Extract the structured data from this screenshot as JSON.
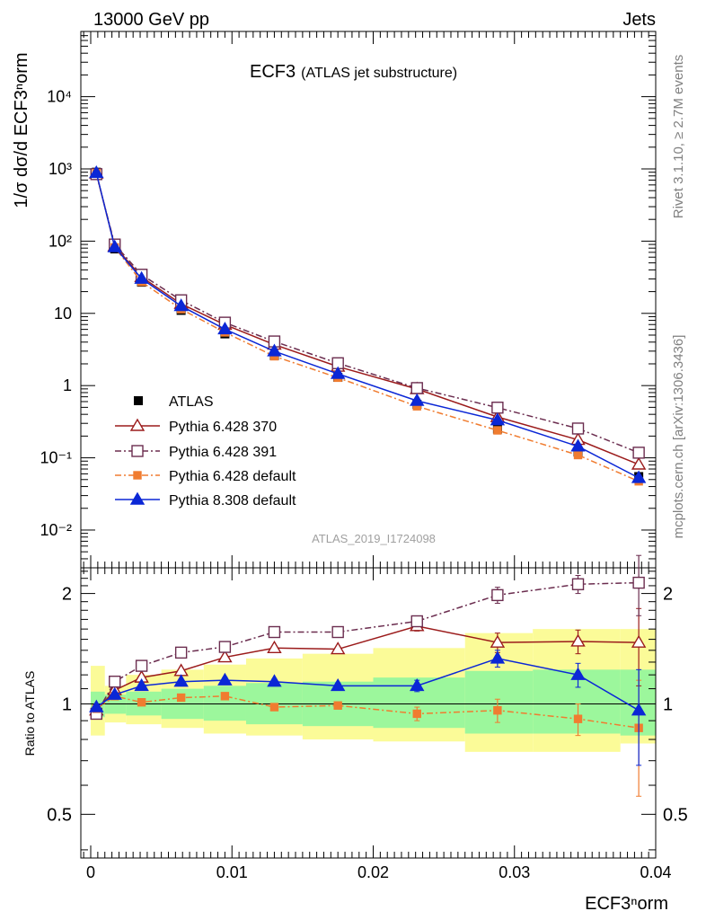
{
  "header": {
    "left": "13000 GeV pp",
    "right": "Jets"
  },
  "title": {
    "main": "ECF3",
    "sub": "(ATLAS jet substructure)"
  },
  "analysis_id": "ATLAS_2019_I1724098",
  "side_labels": {
    "top": "Rivet 3.1.10, ≥ 2.7M events",
    "bottom": "mcplots.cern.ch [arXiv:1306.3436]"
  },
  "axes": {
    "xlabel": "ECF3ⁿorm",
    "ylabel_top": "1/σ dσ/d ECF3ⁿorm",
    "ylabel_bottom": "Ratio to ATLAS",
    "main_yticks": [
      "10⁻²",
      "10⁻¹",
      "1",
      "10",
      "10²",
      "10³",
      "10⁴"
    ],
    "ratio_yticks": [
      "0.5",
      "1",
      "2"
    ],
    "xticks": [
      "0",
      "0.01",
      "0.02",
      "0.03",
      "0.04"
    ]
  },
  "legend": [
    {
      "label": "ATLAS"
    },
    {
      "label": "Pythia 6.428 370"
    },
    {
      "label": "Pythia 6.428 391"
    },
    {
      "label": "Pythia 6.428 default"
    },
    {
      "label": "Pythia 8.308 default"
    }
  ],
  "chart_data": {
    "type": "line",
    "xlabel": "ECF3ⁿorm",
    "ylabel": "1/σ dσ/d ECF3ⁿorm",
    "xlim": [
      -0.0007,
      0.04
    ],
    "ylim": [
      0.003,
      80000
    ],
    "yscale": "log",
    "ratio_ylim": [
      0.38,
      2.35
    ],
    "ratio_yscale": "log",
    "x": [
      0.0004,
      0.0017,
      0.0036,
      0.0064,
      0.0095,
      0.013,
      0.0175,
      0.0231,
      0.0288,
      0.0345,
      0.0388
    ],
    "data": {
      "name": "ATLAS",
      "values": [
        900,
        78,
        27,
        11,
        5.2,
        2.6,
        1.3,
        0.55,
        0.25,
        0.12,
        0.055
      ],
      "band_inner": [
        [
          0.92,
          1.08
        ],
        [
          0.94,
          1.06
        ],
        [
          0.93,
          1.08
        ],
        [
          0.91,
          1.1
        ],
        [
          0.9,
          1.12
        ],
        [
          0.88,
          1.14
        ],
        [
          0.87,
          1.15
        ],
        [
          0.86,
          1.18
        ],
        [
          0.83,
          1.23
        ],
        [
          0.83,
          1.24
        ],
        [
          0.82,
          1.24
        ]
      ],
      "band_outer": [
        [
          0.82,
          1.27
        ],
        [
          0.89,
          1.12
        ],
        [
          0.88,
          1.2
        ],
        [
          0.86,
          1.24
        ],
        [
          0.83,
          1.28
        ],
        [
          0.82,
          1.33
        ],
        [
          0.8,
          1.37
        ],
        [
          0.79,
          1.42
        ],
        [
          0.74,
          1.56
        ],
        [
          0.74,
          1.6
        ],
        [
          0.78,
          1.6
        ]
      ]
    },
    "series": [
      {
        "name": "Pythia 6.428 370",
        "color": "#9b1b1b",
        "marker": "open-triangle",
        "dash": "",
        "ratio": [
          0.96,
          1.09,
          1.18,
          1.23,
          1.34,
          1.42,
          1.41,
          1.63,
          1.47,
          1.48,
          1.47
        ],
        "ratio_err": [
          0.01,
          0.01,
          0.01,
          0.01,
          0.02,
          0.02,
          0.02,
          0.05,
          0.09,
          0.11,
          0.35
        ]
      },
      {
        "name": "Pythia 6.428 391",
        "color": "#6b2d4f",
        "marker": "open-square",
        "dash": "7,3,2,3",
        "ratio": [
          0.94,
          1.15,
          1.27,
          1.38,
          1.43,
          1.57,
          1.57,
          1.68,
          1.98,
          2.12,
          2.14
        ],
        "ratio_err": [
          0.01,
          0.01,
          0.01,
          0.02,
          0.02,
          0.03,
          0.03,
          0.05,
          0.1,
          0.12,
          0.4
        ]
      },
      {
        "name": "Pythia 6.428 default",
        "color": "#f07c30",
        "marker": "filled-square",
        "dash": "7,3,2,3",
        "ratio": [
          0.97,
          1.05,
          1.01,
          1.04,
          1.05,
          0.98,
          0.99,
          0.94,
          0.96,
          0.91,
          0.86
        ],
        "ratio_err": [
          0.01,
          0.01,
          0.01,
          0.01,
          0.02,
          0.02,
          0.02,
          0.04,
          0.07,
          0.09,
          0.3
        ]
      },
      {
        "name": "Pythia 8.308 default",
        "color": "#0b27d6",
        "marker": "filled-triangle",
        "dash": "",
        "ratio": [
          0.98,
          1.06,
          1.12,
          1.15,
          1.16,
          1.15,
          1.12,
          1.12,
          1.33,
          1.2,
          0.96
        ],
        "ratio_err": [
          0.01,
          0.01,
          0.01,
          0.01,
          0.02,
          0.02,
          0.02,
          0.04,
          0.07,
          0.09,
          0.28
        ]
      }
    ]
  }
}
